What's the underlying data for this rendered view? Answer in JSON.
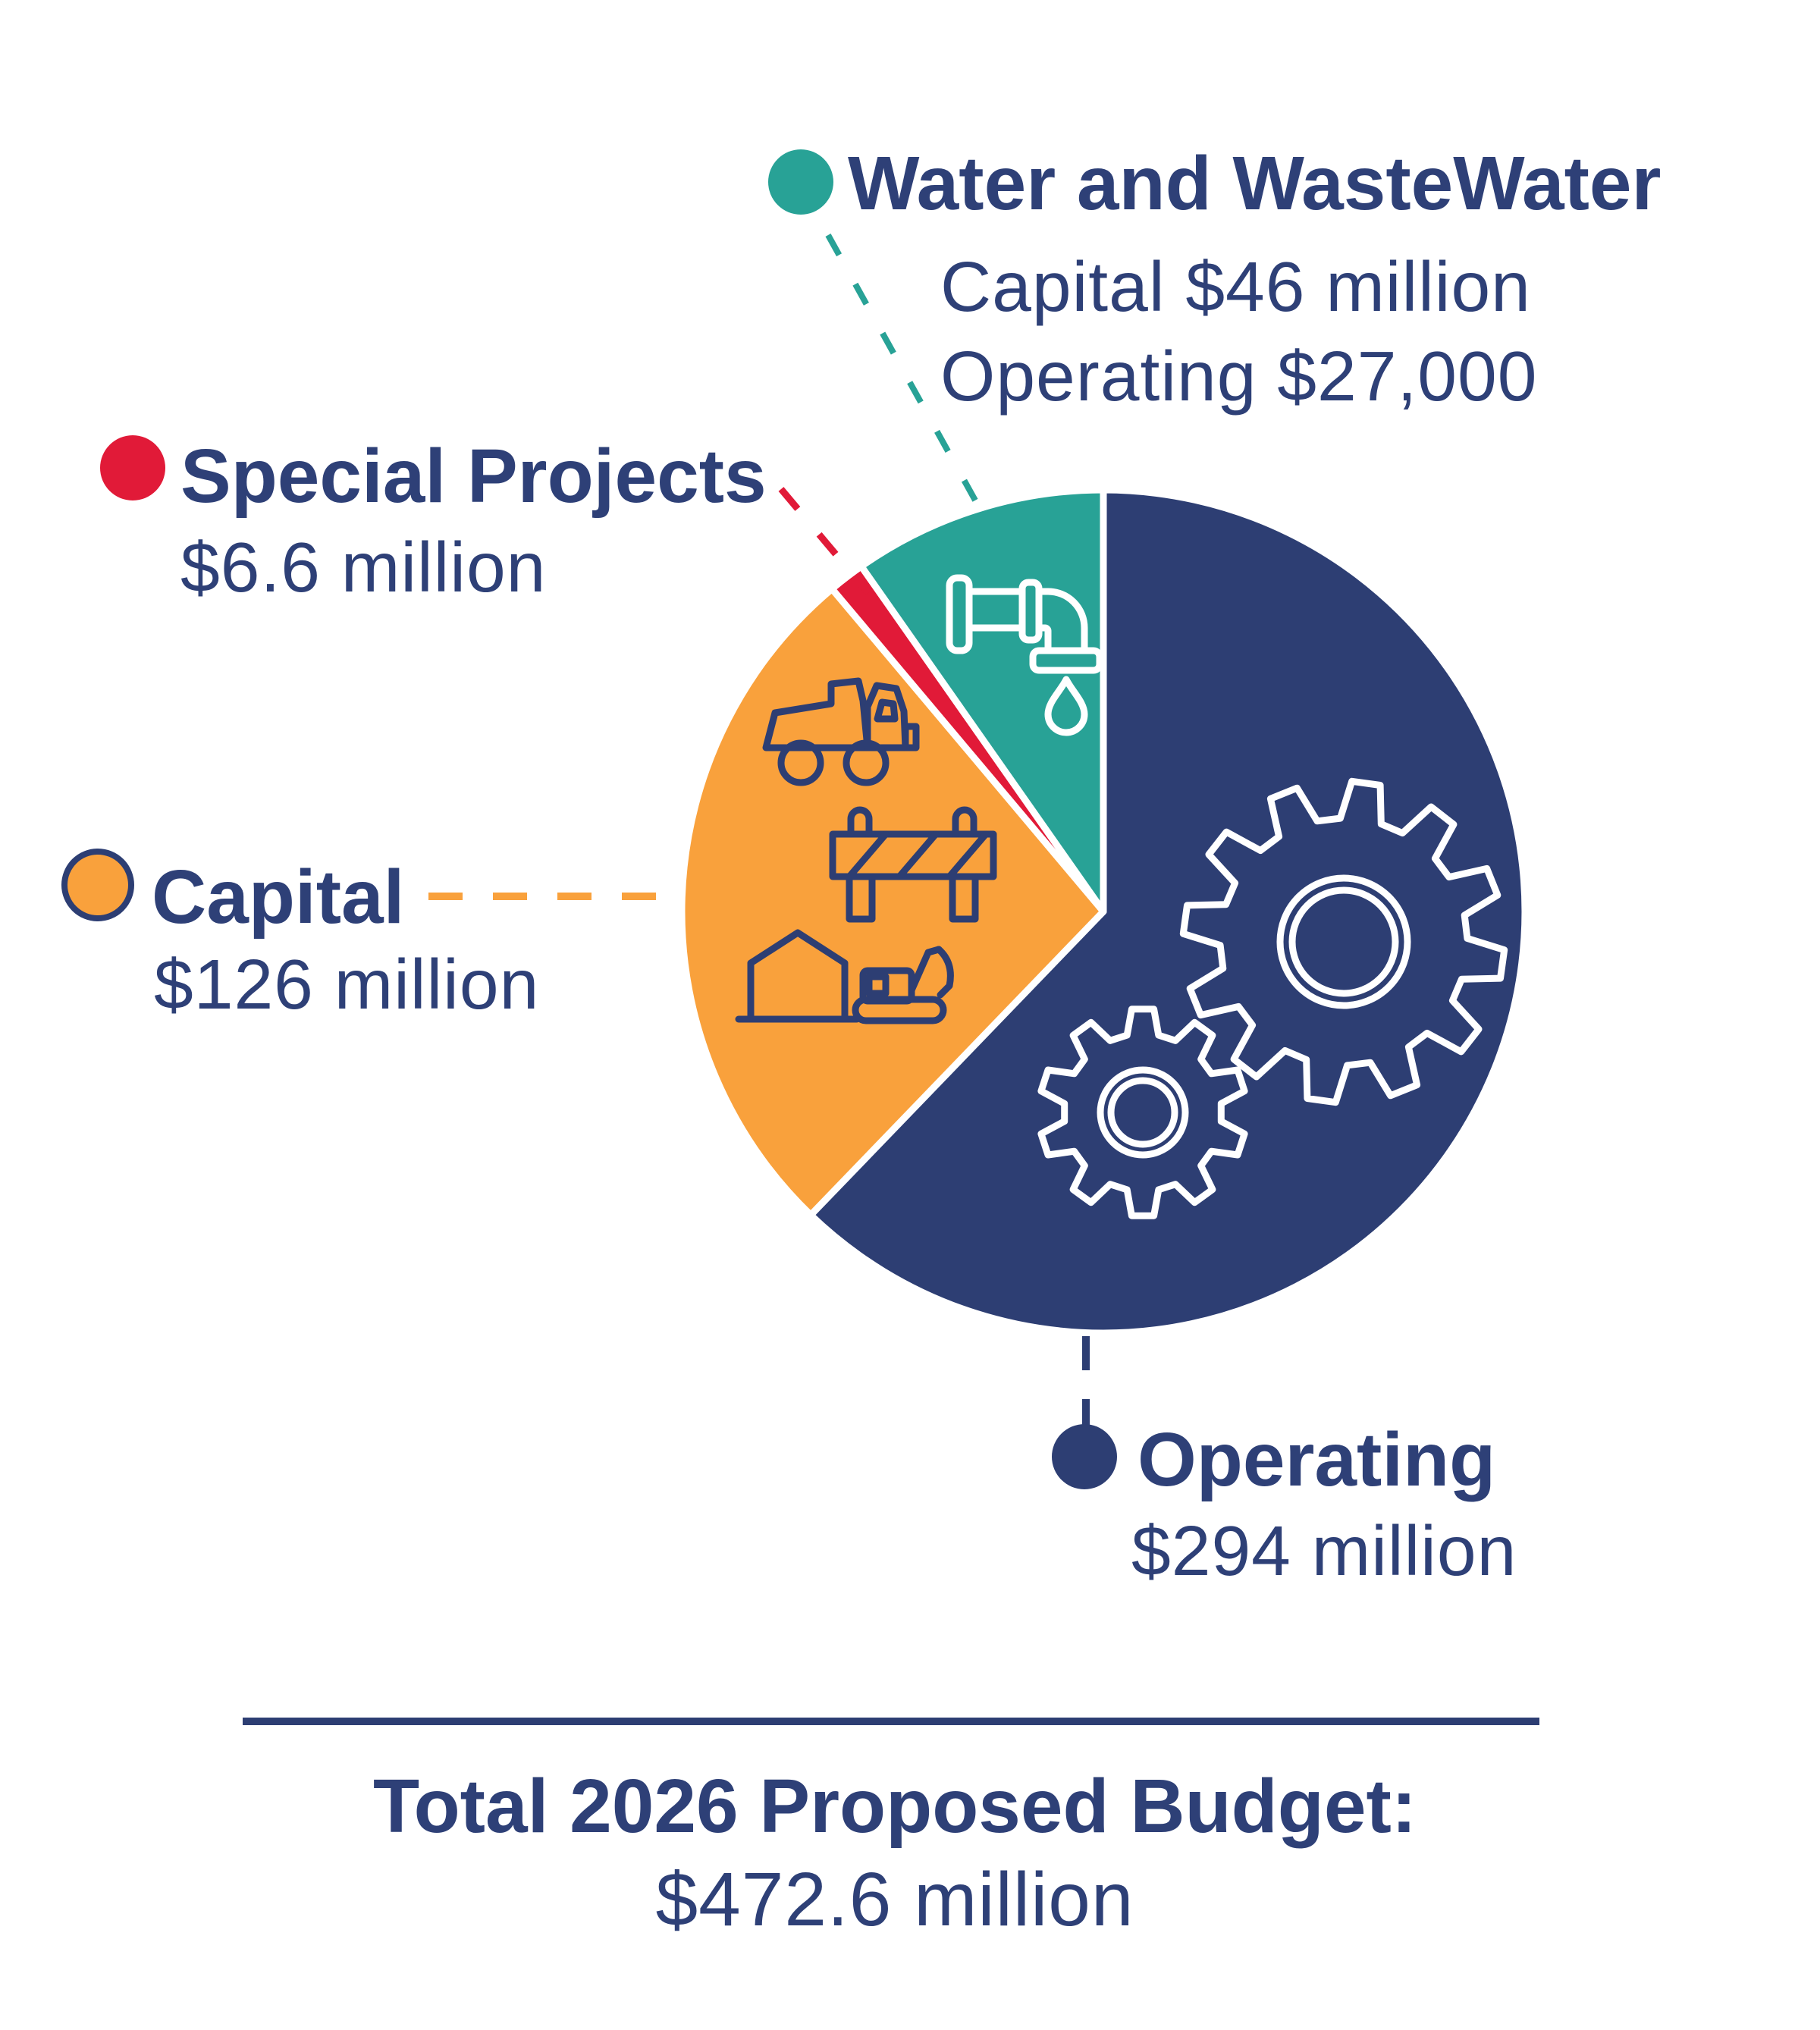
{
  "palette": {
    "navy": "#2D3E73",
    "text": "#2E4077",
    "teal": "#28A296",
    "orange": "#F9A13C",
    "red": "#E11A38",
    "white": "#FFFFFF"
  },
  "legend": {
    "water": {
      "label": "Water and WasteWater",
      "line1": "Capital $46 million",
      "line2": "Operating $27,000"
    },
    "special": {
      "label": "Special Projects",
      "value": "$6.6 million"
    },
    "capital": {
      "label": "Capital",
      "value": "$126 million"
    },
    "operating": {
      "label": "Operating",
      "value": "$294 million"
    }
  },
  "footer": {
    "title": "Total 2026 Proposed Budget:",
    "value": "$472.6 million"
  },
  "chart_data": {
    "type": "pie",
    "title": "Total 2026 Proposed Budget: $472.6 million",
    "unit": "million USD",
    "direction": "clockwise",
    "start_angle_deg": 0,
    "total_million": 472.6,
    "legend_position": "around",
    "categories": [
      "Operating",
      "Capital",
      "Special Projects",
      "Water and WasteWater"
    ],
    "values": [
      294,
      126,
      6.6,
      46
    ],
    "slices": [
      {
        "label": "Operating",
        "value_million": 294,
        "display_value": "$294 million",
        "color": "#2D3E73",
        "icon": "gears-icon"
      },
      {
        "label": "Capital",
        "value_million": 126,
        "display_value": "$126 million",
        "color": "#F9A13C",
        "icon": "construction-equipment-icons"
      },
      {
        "label": "Special Projects",
        "value_million": 6.6,
        "display_value": "$6.6 million",
        "color": "#E11A38",
        "icon": null
      },
      {
        "label": "Water and WasteWater",
        "value_million": 46,
        "display_value": "Capital $46 million; Operating $27,000",
        "color": "#28A296",
        "icon": "faucet-icon"
      }
    ]
  }
}
